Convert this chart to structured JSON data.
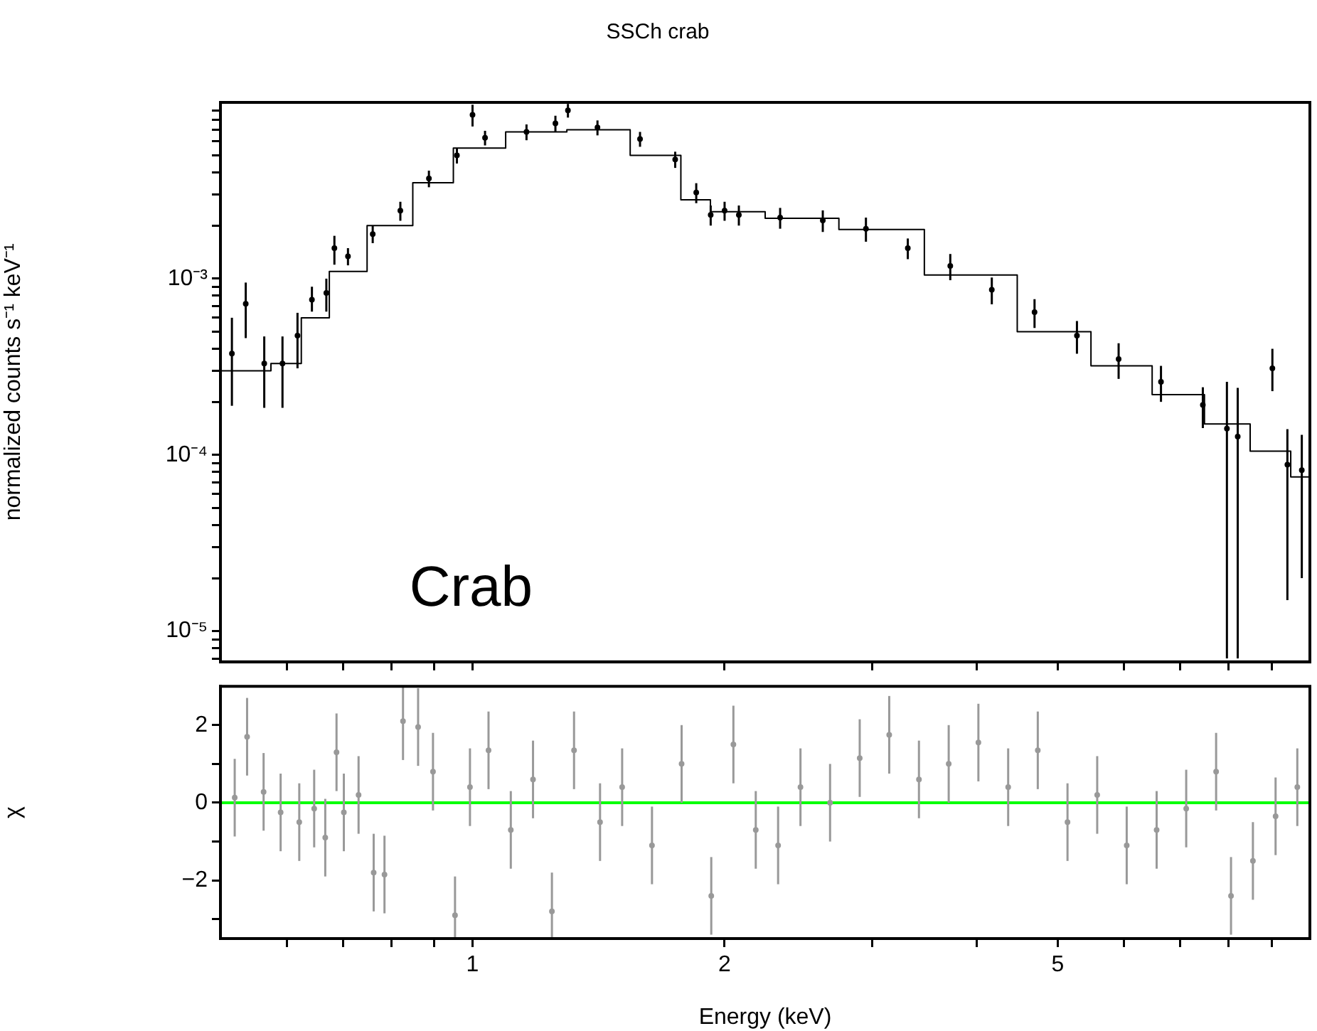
{
  "chart_data": [
    {
      "type": "scatter",
      "title": "SSCh crab",
      "ylabel": "normalized counts s⁻¹ keV⁻¹",
      "annotations": [
        "Crab"
      ],
      "log": "xy",
      "grid": false,
      "legend": false,
      "tick_labels": "y",
      "xlim": [
        0.5,
        10
      ],
      "xticks": [
        {
          "value": 0.6,
          "label": null
        },
        {
          "value": 0.7,
          "label": null
        },
        {
          "value": 0.8,
          "label": null
        },
        {
          "value": 0.9,
          "label": null
        },
        {
          "value": 1,
          "label": null
        },
        {
          "value": 2,
          "label": null
        },
        {
          "value": 3,
          "label": null
        },
        {
          "value": 4,
          "label": null
        },
        {
          "value": 5,
          "label": null
        },
        {
          "value": 6,
          "label": null
        },
        {
          "value": 7,
          "label": null
        },
        {
          "value": 8,
          "label": null
        },
        {
          "value": 9,
          "label": null
        }
      ],
      "ylim": [
        6.7e-06,
        0.01
      ],
      "yticks": [
        {
          "value": 7e-06,
          "label": null
        },
        {
          "value": 8e-06,
          "label": null
        },
        {
          "value": 9e-06,
          "label": null
        },
        {
          "value": 1e-05,
          "label": "10⁻⁵"
        },
        {
          "value": 2e-05,
          "label": null
        },
        {
          "value": 3e-05,
          "label": null
        },
        {
          "value": 4e-05,
          "label": null
        },
        {
          "value": 5e-05,
          "label": null
        },
        {
          "value": 6e-05,
          "label": null
        },
        {
          "value": 7e-05,
          "label": null
        },
        {
          "value": 8e-05,
          "label": null
        },
        {
          "value": 9e-05,
          "label": null
        },
        {
          "value": 0.0001,
          "label": "10⁻⁴"
        },
        {
          "value": 0.0002,
          "label": null
        },
        {
          "value": 0.0003,
          "label": null
        },
        {
          "value": 0.0004,
          "label": null
        },
        {
          "value": 0.0005,
          "label": null
        },
        {
          "value": 0.0006,
          "label": null
        },
        {
          "value": 0.0007,
          "label": null
        },
        {
          "value": 0.0008,
          "label": null
        },
        {
          "value": 0.0009,
          "label": null
        },
        {
          "value": 0.001,
          "label": "10⁻³"
        },
        {
          "value": 0.002,
          "label": null
        },
        {
          "value": 0.003,
          "label": null
        },
        {
          "value": 0.004,
          "label": null
        },
        {
          "value": 0.005,
          "label": null
        },
        {
          "value": 0.006,
          "label": null
        },
        {
          "value": 0.007,
          "label": null
        },
        {
          "value": 0.008,
          "label": null
        },
        {
          "value": 0.009,
          "label": null
        }
      ],
      "series": [
        {
          "marker": "circle",
          "color": "#000000",
          "x": [
            0.516,
            0.536,
            0.564,
            0.593,
            0.618,
            0.643,
            0.669,
            0.684,
            0.71,
            0.76,
            0.82,
            0.887,
            0.958,
            1.0,
            1.035,
            1.16,
            1.256,
            1.3,
            1.41,
            1.585,
            1.746,
            1.85,
            1.925,
            2.0,
            2.08,
            2.33,
            2.62,
            2.95,
            3.31,
            3.72,
            4.17,
            4.69,
            5.27,
            5.91,
            6.64,
            7.45,
            7.96,
            8.2,
            9.02,
            9.4,
            9.78
          ],
          "values": [
            0.000376,
            0.00072,
            0.00033,
            0.00033,
            0.000475,
            0.00076,
            0.00083,
            0.00149,
            0.00134,
            0.00179,
            0.00243,
            0.0037,
            0.005,
            0.0085,
            0.0063,
            0.0068,
            0.0076,
            0.009,
            0.0072,
            0.0062,
            0.00475,
            0.00308,
            0.0023,
            0.00243,
            0.0023,
            0.00222,
            0.00214,
            0.00192,
            0.00149,
            0.00118,
            0.000865,
            0.000645,
            0.000475,
            0.00035,
            0.00026,
            0.000192,
            0.000141,
            0.000127,
            0.00031,
            8.8e-05,
            8.2e-05
          ],
          "errors": [
            [
              0.00019,
              0.0006
            ],
            [
              0.00046,
              0.00095
            ],
            [
              0.000185,
              0.00047
            ],
            [
              0.000185,
              0.00047
            ],
            [
              0.00031,
              0.00064
            ],
            [
              0.00065,
              0.0009
            ],
            [
              0.00065,
              0.001
            ],
            [
              0.0012,
              0.00175
            ],
            0.00015,
            0.0002,
            0.0003,
            0.0004,
            0.0005,
            0.0012,
            0.0006,
            0.0007,
            0.0008,
            0.0008,
            0.0007,
            0.0006,
            0.0005,
            0.0004,
            0.0003,
            0.0003,
            0.0003,
            0.0003,
            0.0003,
            0.0003,
            0.0002,
            0.0002,
            0.00015,
            0.00012,
            0.0001,
            8e-05,
            6e-05,
            5e-05,
            [
              7e-06,
              0.00026
            ],
            [
              7e-06,
              0.00024
            ],
            [
              0.00023,
              0.0004
            ],
            [
              1.5e-05,
              0.00014
            ],
            [
              2e-05,
              0.00013
            ]
          ]
        },
        {
          "type": "step",
          "color": "#000000",
          "x": [
            0.5,
            0.55,
            0.6,
            0.65,
            0.7,
            0.8,
            0.9,
            1.0,
            1.2,
            1.4,
            1.7,
            1.85,
            2.0,
            2.5,
            3,
            4,
            5,
            6,
            7,
            8,
            9,
            10
          ],
          "values": [
            0.0003,
            0.0003,
            0.00033,
            0.0006,
            0.0011,
            0.002,
            0.0035,
            0.0055,
            0.0068,
            0.007,
            0.005,
            0.0028,
            0.0024,
            0.0022,
            0.0019,
            0.00105,
            0.0005,
            0.00032,
            0.00022,
            0.00015,
            0.000105,
            7.5e-05
          ]
        }
      ]
    },
    {
      "type": "scatter",
      "xlabel": "Energy (keV)",
      "ylabel": "χ",
      "log": "x",
      "grid": false,
      "legend": false,
      "marker": "circle",
      "xlim": [
        0.5,
        10
      ],
      "xticks": [
        {
          "value": 0.6,
          "label": null
        },
        {
          "value": 0.7,
          "label": null
        },
        {
          "value": 0.8,
          "label": null
        },
        {
          "value": 0.9,
          "label": null
        },
        1,
        2,
        {
          "value": 3,
          "label": null
        },
        {
          "value": 4,
          "label": null
        },
        5,
        {
          "value": 6,
          "label": null
        },
        {
          "value": 7,
          "label": null
        },
        {
          "value": 8,
          "label": null
        },
        {
          "value": 9,
          "label": null
        }
      ],
      "ylim": [
        -3.5,
        3
      ],
      "yticks": [
        {
          "value": -3,
          "label": null
        },
        {
          "value": -2,
          "label": "−2"
        },
        {
          "value": -1,
          "label": null
        },
        0,
        {
          "value": 1,
          "label": null
        },
        2
      ],
      "ref_lines": [
        {
          "axis": "y",
          "value": 0,
          "color": "#00ff00"
        }
      ],
      "series": [
        {
          "color": "#999999",
          "x": [
            0.52,
            0.538,
            0.563,
            0.59,
            0.621,
            0.647,
            0.667,
            0.688,
            0.702,
            0.731,
            0.762,
            0.785,
            0.826,
            0.861,
            0.897,
            0.953,
            0.993,
            1.045,
            1.111,
            1.181,
            1.244,
            1.322,
            1.42,
            1.509,
            1.638,
            1.777,
            1.928,
            2.049,
            2.179,
            2.317,
            2.464,
            2.673,
            2.9,
            3.145,
            3.413,
            3.704,
            4.019,
            4.362,
            4.732,
            5.135,
            5.572,
            6.043,
            6.561,
            7.117,
            7.727,
            8.05,
            8.55,
            9.1,
            9.66
          ],
          "values": [
            0.13,
            1.7,
            0.28,
            -0.25,
            -0.5,
            -0.15,
            -0.9,
            1.3,
            -0.25,
            0.2,
            -1.8,
            -1.85,
            2.1,
            1.95,
            0.8,
            -2.9,
            0.4,
            1.35,
            -0.7,
            0.6,
            -2.8,
            1.35,
            -0.5,
            0.4,
            -1.1,
            1.0,
            -2.4,
            1.5,
            -0.7,
            -1.1,
            0.4,
            0,
            1.15,
            1.75,
            0.6,
            1.0,
            1.55,
            0.4,
            1.35,
            -0.5,
            0.2,
            -1.1,
            -0.7,
            -0.15,
            0.8,
            -2.4,
            -1.5,
            -0.35,
            0.4
          ],
          "errors": [
            1,
            1,
            1,
            1,
            1,
            1,
            1,
            1,
            1,
            1,
            1,
            1,
            [
              1.1,
              3
            ],
            [
              0.95,
              2.95
            ],
            1,
            [
              -3.5,
              -1.9
            ],
            1,
            1,
            1,
            1,
            [
              -3.5,
              -1.8
            ],
            1,
            1,
            1,
            1,
            1,
            1,
            1,
            1,
            1,
            1,
            1,
            1,
            1,
            1,
            1,
            1,
            1,
            1,
            1,
            1,
            1,
            1,
            1,
            1,
            1,
            1,
            1,
            1
          ]
        }
      ]
    }
  ]
}
